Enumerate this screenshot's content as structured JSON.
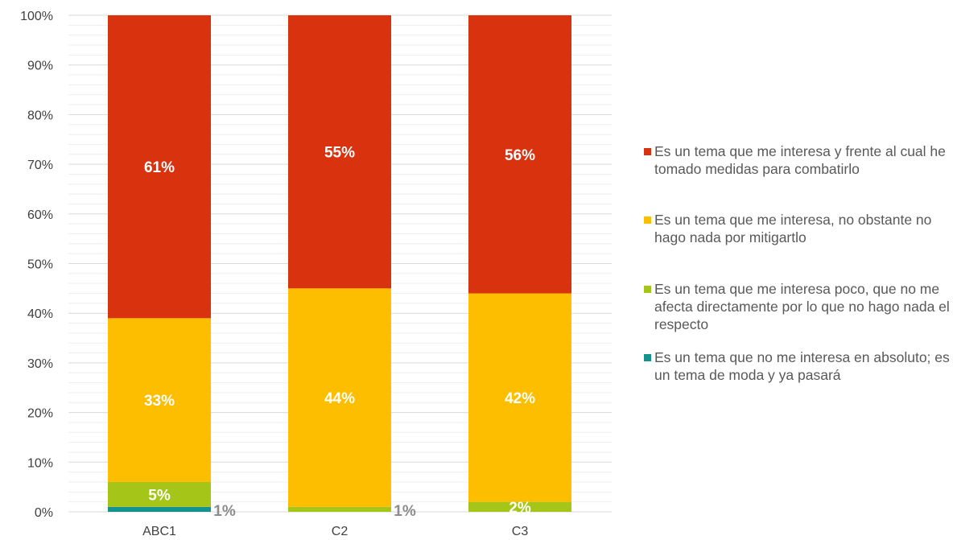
{
  "chart_data": {
    "type": "bar",
    "stacked": true,
    "categories": [
      "ABC1",
      "C2",
      "C3"
    ],
    "y_ticks": [
      "0%",
      "10%",
      "20%",
      "30%",
      "40%",
      "50%",
      "60%",
      "70%",
      "80%",
      "90%",
      "100%"
    ],
    "ylim": [
      0,
      100
    ],
    "grid": true,
    "legend_position": "right",
    "series": [
      {
        "name": "Es un tema que no me interesa en absoluto; es un tema de moda y ya pasará",
        "color": "#13928f",
        "values": [
          1,
          0,
          0
        ],
        "labels": [
          "1%",
          "",
          ""
        ],
        "label_style": "outside"
      },
      {
        "name": "Es un tema que me interesa poco, que no me afecta directamente por lo que no hago nada el respecto",
        "color": "#a5c518",
        "values": [
          5,
          1,
          2
        ],
        "labels": [
          "5%",
          "1%",
          "2%"
        ],
        "label_style": [
          "inside",
          "outside",
          "inside"
        ]
      },
      {
        "name": "Es un tema que me interesa, no obstante no hago nada por mitigartlo",
        "color": "#fdbe00",
        "values": [
          33,
          44,
          42
        ],
        "labels": [
          "33%",
          "44%",
          "42%"
        ],
        "label_style": "inside"
      },
      {
        "name": "Es un tema que me interesa y frente al cual he tomado medidas para combatirlo",
        "color": "#d9320e",
        "values": [
          61,
          55,
          56
        ],
        "labels": [
          "61%",
          "55%",
          "56%"
        ],
        "label_style": "inside"
      }
    ]
  },
  "legend": [
    {
      "label": "Es un tema que me interesa y frente al cual he tomado medidas para combatirlo",
      "color": "#d9320e"
    },
    {
      "label": "Es un tema que me interesa, no obstante no hago nada por mitigartlo",
      "color": "#fdbe00"
    },
    {
      "label": "Es un tema que me interesa poco, que no me afecta directamente por lo que no hago nada el respecto",
      "color": "#a5c518"
    },
    {
      "label": "Es un tema que no me interesa en absoluto; es un tema de moda y ya pasará",
      "color": "#13928f"
    }
  ]
}
